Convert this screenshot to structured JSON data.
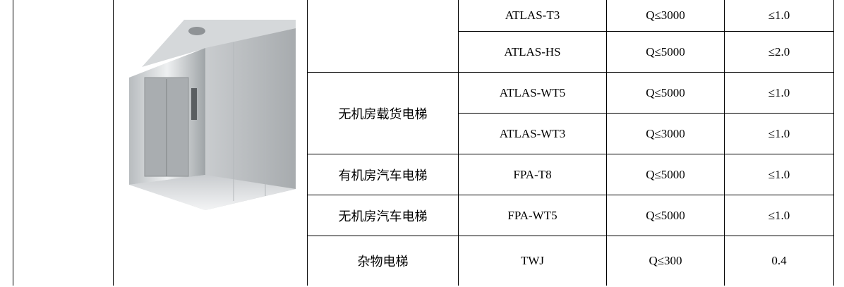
{
  "table": {
    "types": [
      "无机房载货电梯",
      "有机房汽车电梯",
      "无机房汽车电梯",
      "杂物电梯"
    ],
    "rows": [
      [
        "ATLAS-T3",
        "Q≤3000",
        "≤1.0"
      ],
      [
        "ATLAS-HS",
        "Q≤5000",
        "≤2.0"
      ],
      [
        "ATLAS-WT5",
        "Q≤5000",
        "≤1.0"
      ],
      [
        "ATLAS-WT3",
        "Q≤3000",
        "≤1.0"
      ],
      [
        "FPA-T8",
        "Q≤5000",
        "≤1.0"
      ],
      [
        "FPA-WT5",
        "Q≤5000",
        "≤1.0"
      ],
      [
        "TWJ",
        "Q≤300",
        "0.4"
      ]
    ]
  }
}
